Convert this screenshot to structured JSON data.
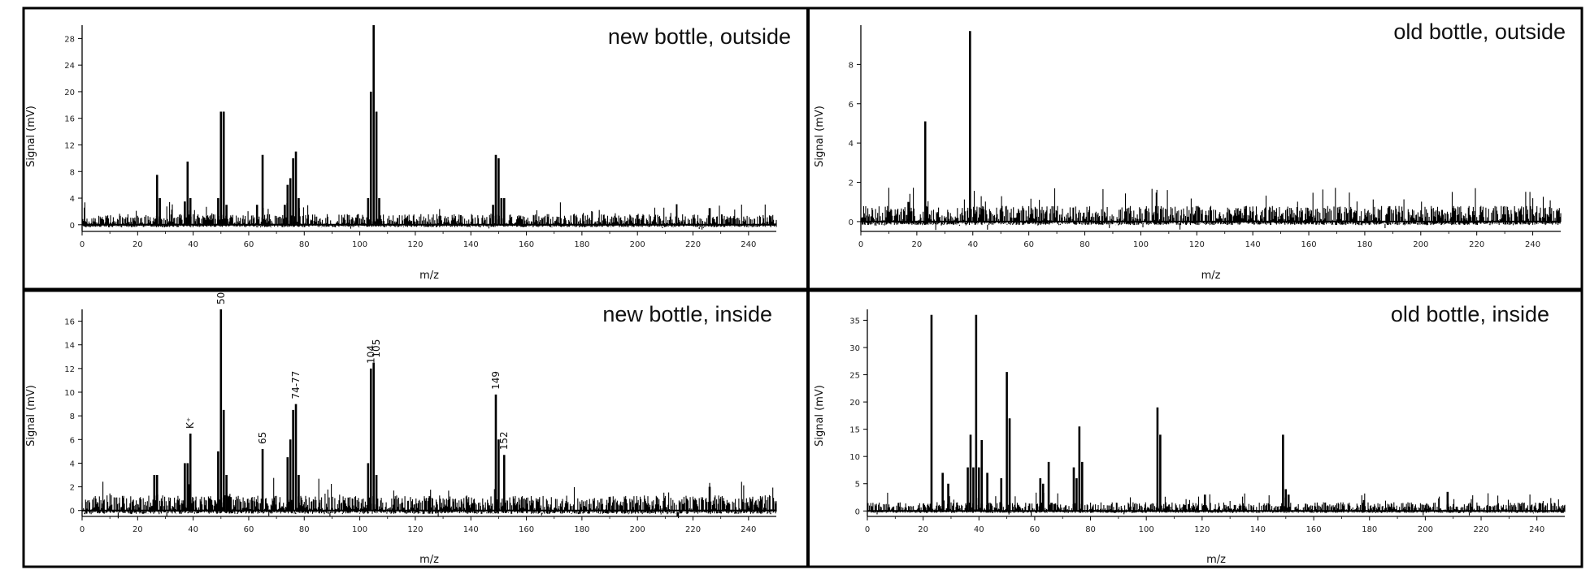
{
  "chart_data": [
    {
      "type": "line",
      "title": "new bottle, outside",
      "xlabel": "m/z",
      "ylabel": "Signal (mV)",
      "xlim": [
        0,
        250
      ],
      "ylim": [
        -1,
        30
      ],
      "xticks": [
        0,
        20,
        40,
        60,
        80,
        100,
        120,
        140,
        160,
        180,
        200,
        220,
        240
      ],
      "yticks": [
        0,
        4,
        8,
        12,
        16,
        20,
        24,
        28
      ],
      "noise_level": 1.0,
      "peaks": [
        {
          "x": 27,
          "y": 7.5
        },
        {
          "x": 28,
          "y": 4
        },
        {
          "x": 37,
          "y": 3.5
        },
        {
          "x": 38,
          "y": 9.5
        },
        {
          "x": 39,
          "y": 4
        },
        {
          "x": 49,
          "y": 4
        },
        {
          "x": 50,
          "y": 17
        },
        {
          "x": 51,
          "y": 17
        },
        {
          "x": 52,
          "y": 3
        },
        {
          "x": 63,
          "y": 3
        },
        {
          "x": 65,
          "y": 10.5
        },
        {
          "x": 73,
          "y": 3
        },
        {
          "x": 74,
          "y": 6
        },
        {
          "x": 75,
          "y": 7
        },
        {
          "x": 76,
          "y": 10
        },
        {
          "x": 77,
          "y": 11
        },
        {
          "x": 78,
          "y": 4
        },
        {
          "x": 103,
          "y": 4
        },
        {
          "x": 104,
          "y": 20
        },
        {
          "x": 105,
          "y": 30
        },
        {
          "x": 106,
          "y": 17
        },
        {
          "x": 107,
          "y": 4
        },
        {
          "x": 148,
          "y": 3
        },
        {
          "x": 149,
          "y": 10.5
        },
        {
          "x": 150,
          "y": 10
        },
        {
          "x": 151,
          "y": 4
        },
        {
          "x": 152,
          "y": 4
        },
        {
          "x": 226,
          "y": 2.5
        }
      ]
    },
    {
      "type": "line",
      "title": "old bottle, outside",
      "xlabel": "m/z",
      "ylabel": "Signal (mV)",
      "xlim": [
        0,
        250
      ],
      "ylim": [
        -0.5,
        10
      ],
      "xticks": [
        0,
        20,
        40,
        60,
        80,
        100,
        120,
        140,
        160,
        180,
        200,
        220,
        240
      ],
      "yticks": [
        0,
        2,
        4,
        6,
        8
      ],
      "noise_level": 0.5,
      "peaks": [
        {
          "x": 17,
          "y": 1
        },
        {
          "x": 23,
          "y": 5.1
        },
        {
          "x": 39,
          "y": 9.7
        }
      ]
    },
    {
      "type": "line",
      "title": "new bottle, inside",
      "xlabel": "m/z",
      "ylabel": "Signal (mV)",
      "xlim": [
        0,
        250
      ],
      "ylim": [
        -0.5,
        17
      ],
      "xticks": [
        0,
        20,
        40,
        60,
        80,
        100,
        120,
        140,
        160,
        180,
        200,
        220,
        240
      ],
      "yticks": [
        0,
        2,
        4,
        6,
        8,
        10,
        12,
        14,
        16
      ],
      "noise_level": 0.8,
      "peaks": [
        {
          "x": 26,
          "y": 3
        },
        {
          "x": 27,
          "y": 3
        },
        {
          "x": 37,
          "y": 4
        },
        {
          "x": 38,
          "y": 4
        },
        {
          "x": 39,
          "y": 6.5
        },
        {
          "x": 49,
          "y": 5
        },
        {
          "x": 50,
          "y": 17
        },
        {
          "x": 51,
          "y": 8.5
        },
        {
          "x": 52,
          "y": 3
        },
        {
          "x": 65,
          "y": 5.2
        },
        {
          "x": 74,
          "y": 4.5
        },
        {
          "x": 75,
          "y": 6
        },
        {
          "x": 76,
          "y": 8.5
        },
        {
          "x": 77,
          "y": 9
        },
        {
          "x": 78,
          "y": 3
        },
        {
          "x": 103,
          "y": 4
        },
        {
          "x": 104,
          "y": 12
        },
        {
          "x": 105,
          "y": 12.5
        },
        {
          "x": 106,
          "y": 3
        },
        {
          "x": 149,
          "y": 9.8
        },
        {
          "x": 150,
          "y": 6
        },
        {
          "x": 152,
          "y": 4.7
        },
        {
          "x": 226,
          "y": 2
        }
      ],
      "annotations": [
        {
          "text": "K⁺",
          "x": 39,
          "y": 6.5
        },
        {
          "text": "50",
          "x": 50,
          "y": 17
        },
        {
          "text": "65",
          "x": 65,
          "y": 5.2
        },
        {
          "text": "74-77",
          "x": 77,
          "y": 9
        },
        {
          "text": "104",
          "x": 104,
          "y": 12
        },
        {
          "text": "105",
          "x": 106,
          "y": 12.5
        },
        {
          "text": "149",
          "x": 149,
          "y": 9.8
        },
        {
          "text": "152",
          "x": 152,
          "y": 4.7
        }
      ]
    },
    {
      "type": "line",
      "title": "old bottle, inside",
      "xlabel": "m/z",
      "ylabel": "Signal (mV)",
      "xlim": [
        0,
        250
      ],
      "ylim": [
        -1,
        37
      ],
      "xticks": [
        0,
        20,
        40,
        60,
        80,
        100,
        120,
        140,
        160,
        180,
        200,
        220,
        240
      ],
      "yticks": [
        0,
        5,
        10,
        15,
        20,
        25,
        30,
        35
      ],
      "noise_level": 1.0,
      "peaks": [
        {
          "x": 23,
          "y": 36
        },
        {
          "x": 27,
          "y": 7
        },
        {
          "x": 29,
          "y": 5
        },
        {
          "x": 36,
          "y": 8
        },
        {
          "x": 37,
          "y": 14
        },
        {
          "x": 38,
          "y": 8
        },
        {
          "x": 39,
          "y": 36
        },
        {
          "x": 40,
          "y": 8
        },
        {
          "x": 41,
          "y": 13
        },
        {
          "x": 43,
          "y": 7
        },
        {
          "x": 48,
          "y": 6
        },
        {
          "x": 50,
          "y": 25.5
        },
        {
          "x": 51,
          "y": 17
        },
        {
          "x": 62,
          "y": 6
        },
        {
          "x": 63,
          "y": 5
        },
        {
          "x": 65,
          "y": 9
        },
        {
          "x": 74,
          "y": 8
        },
        {
          "x": 75,
          "y": 6
        },
        {
          "x": 76,
          "y": 15.5
        },
        {
          "x": 77,
          "y": 9
        },
        {
          "x": 104,
          "y": 19
        },
        {
          "x": 105,
          "y": 14
        },
        {
          "x": 121,
          "y": 3
        },
        {
          "x": 149,
          "y": 14
        },
        {
          "x": 150,
          "y": 4
        },
        {
          "x": 151,
          "y": 3
        },
        {
          "x": 178,
          "y": 2
        },
        {
          "x": 208,
          "y": 3.5
        }
      ]
    }
  ]
}
